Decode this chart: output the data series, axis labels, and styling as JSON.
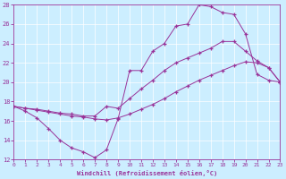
{
  "xlabel": "Windchill (Refroidissement éolien,°C)",
  "bg_color": "#cceeff",
  "line_color": "#993399",
  "xlim": [
    0,
    23
  ],
  "ylim": [
    12,
    28
  ],
  "xticks": [
    0,
    1,
    2,
    3,
    4,
    5,
    6,
    7,
    8,
    9,
    10,
    11,
    12,
    13,
    14,
    15,
    16,
    17,
    18,
    19,
    20,
    21,
    22,
    23
  ],
  "yticks": [
    12,
    14,
    16,
    18,
    20,
    22,
    24,
    26,
    28
  ],
  "series1_x": [
    0,
    1,
    2,
    3,
    4,
    5,
    6,
    7,
    8,
    9,
    10,
    11,
    12,
    13,
    14,
    15,
    16,
    17,
    18,
    19,
    20,
    21,
    22,
    23
  ],
  "series1_y": [
    17.5,
    17.0,
    16.3,
    15.2,
    14.0,
    13.2,
    12.8,
    12.2,
    13.0,
    16.2,
    21.2,
    21.2,
    23.2,
    24.0,
    25.8,
    26.0,
    28.0,
    27.8,
    27.2,
    27.0,
    25.0,
    20.8,
    20.2,
    20.0
  ],
  "series2_x": [
    0,
    1,
    2,
    3,
    4,
    5,
    6,
    7,
    8,
    9,
    10,
    11,
    12,
    13,
    14,
    15,
    16,
    17,
    18,
    19,
    20,
    21,
    22,
    23
  ],
  "series2_y": [
    17.5,
    17.3,
    17.2,
    17.0,
    16.8,
    16.7,
    16.5,
    16.5,
    17.5,
    17.3,
    18.3,
    19.3,
    20.2,
    21.2,
    22.0,
    22.5,
    23.0,
    23.5,
    24.2,
    24.2,
    23.2,
    22.2,
    21.5,
    20.0
  ],
  "series3_x": [
    0,
    1,
    2,
    3,
    4,
    5,
    6,
    7,
    8,
    9,
    10,
    11,
    12,
    13,
    14,
    15,
    16,
    17,
    18,
    19,
    20,
    21,
    22,
    23
  ],
  "series3_y": [
    17.5,
    17.3,
    17.1,
    16.9,
    16.7,
    16.5,
    16.4,
    16.2,
    16.1,
    16.3,
    16.7,
    17.2,
    17.7,
    18.3,
    19.0,
    19.6,
    20.2,
    20.7,
    21.2,
    21.7,
    22.1,
    22.0,
    21.5,
    20.0
  ]
}
